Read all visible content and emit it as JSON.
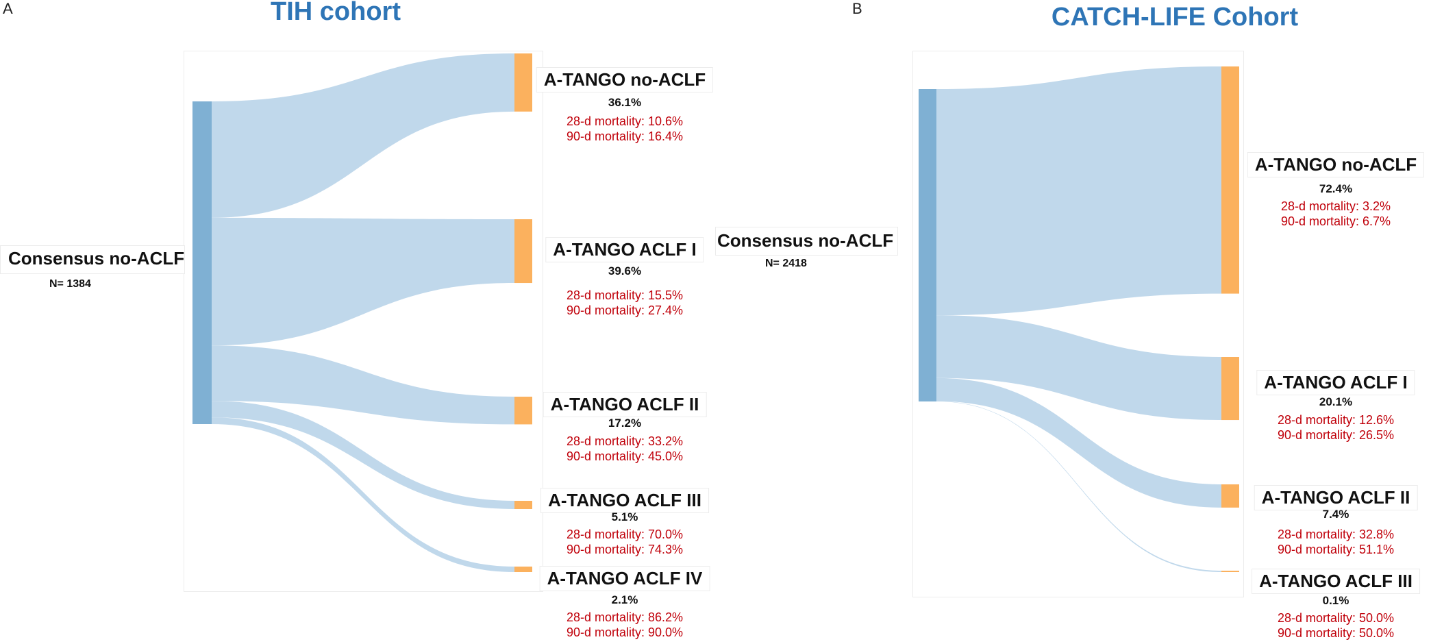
{
  "panels": [
    {
      "letter": "A",
      "title": "TIH cohort",
      "source": {
        "label": "Consensus no-ACLF",
        "n": "N= 1384"
      },
      "targets": [
        {
          "label": "A-TANGO no-ACLF",
          "pct": "36.1%",
          "m28": "28-d mortality: 10.6%",
          "m90": "90-d mortality: 16.4%"
        },
        {
          "label": "A-TANGO ACLF I",
          "pct": "39.6%",
          "m28": "28-d mortality: 15.5%",
          "m90": "90-d mortality: 27.4%"
        },
        {
          "label": "A-TANGO ACLF II",
          "pct": "17.2%",
          "m28": "28-d mortality: 33.2%",
          "m90": "90-d mortality: 45.0%"
        },
        {
          "label": "A-TANGO ACLF III",
          "pct": "5.1%",
          "m28": "28-d mortality: 70.0%",
          "m90": "90-d mortality: 74.3%"
        },
        {
          "label": "A-TANGO ACLF IV",
          "pct": "2.1%",
          "m28": "28-d mortality: 86.2%",
          "m90": "90-d mortality: 90.0%"
        }
      ],
      "flow_shares": [
        36.1,
        39.6,
        17.2,
        5.1,
        2.1
      ]
    },
    {
      "letter": "B",
      "title": "CATCH-LIFE Cohort",
      "source": {
        "label": "Consensus no-ACLF",
        "n": "N= 2418"
      },
      "targets": [
        {
          "label": "A-TANGO no-ACLF",
          "pct": "72.4%",
          "m28": "28-d mortality: 3.2%",
          "m90": "90-d mortality: 6.7%"
        },
        {
          "label": "A-TANGO ACLF I",
          "pct": "20.1%",
          "m28": "28-d mortality: 12.6%",
          "m90": "90-d mortality: 26.5%"
        },
        {
          "label": "A-TANGO ACLF II",
          "pct": "7.4%",
          "m28": "28-d mortality: 32.8%",
          "m90": "90-d mortality: 51.1%"
        },
        {
          "label": "A-TANGO ACLF III",
          "pct": "0.1%",
          "m28": "28-d mortality: 50.0%",
          "m90": "90-d mortality: 50.0%"
        }
      ],
      "flow_shares": [
        72.4,
        20.1,
        7.4,
        0.1
      ]
    }
  ],
  "colors": {
    "title": "#2e75b6",
    "source_node": "#7fb0d3",
    "target_node": "#fbb15e",
    "flow": "#bdd6ea",
    "mortality_text": "#c0000a"
  }
}
